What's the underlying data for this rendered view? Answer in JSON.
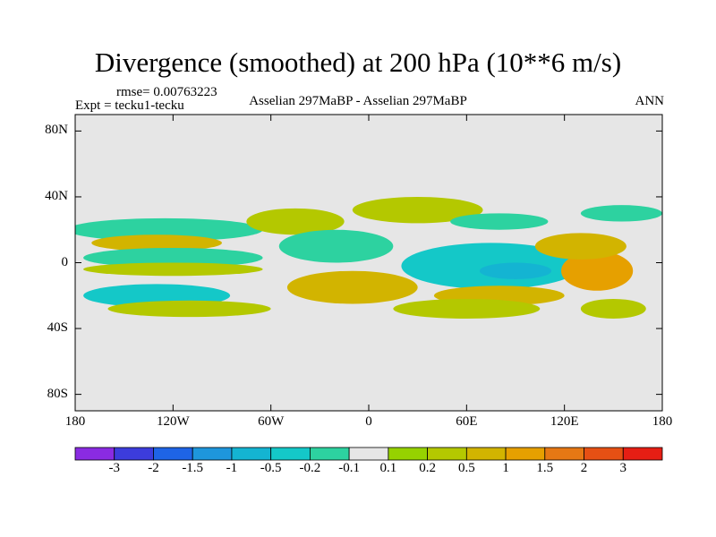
{
  "figure": {
    "title": "Divergence (smoothed) at 200 hPa (10**6 m/s)",
    "rmse": "rmse= 0.00763223",
    "left_label": "Expt = tecku1-tecku",
    "center_label": "Asselian 297MaBP - Asselian 297MaBP",
    "right_label": "ANN"
  },
  "chart_data": {
    "type": "heatmap",
    "title": "Divergence (smoothed) at 200 hPa (10**6 m/s)",
    "xlabel": "",
    "ylabel": "",
    "xlim": [
      -180,
      180
    ],
    "ylim": [
      -90,
      90
    ],
    "x_ticks": [
      {
        "value": -180,
        "label": "180"
      },
      {
        "value": -120,
        "label": "120W"
      },
      {
        "value": -60,
        "label": "60W"
      },
      {
        "value": 0,
        "label": "0"
      },
      {
        "value": 60,
        "label": "60E"
      },
      {
        "value": 120,
        "label": "120E"
      },
      {
        "value": 180,
        "label": "180"
      }
    ],
    "y_ticks": [
      {
        "value": 80,
        "label": "80N"
      },
      {
        "value": 40,
        "label": "40N"
      },
      {
        "value": 0,
        "label": "0"
      },
      {
        "value": -40,
        "label": "40S"
      },
      {
        "value": -80,
        "label": "80S"
      }
    ],
    "background_color": "#e6e6e6",
    "colorbar": {
      "colors": [
        "#8a2be2",
        "#3c3cdc",
        "#1e64e6",
        "#1e96dc",
        "#14b4d2",
        "#14c8c8",
        "#2dd2a0",
        "#e6e6e6",
        "#96d200",
        "#b4c800",
        "#d2b400",
        "#e6a000",
        "#e67814",
        "#e65014",
        "#e61e14"
      ],
      "labels": [
        "-3",
        "-2",
        "-1.5",
        "-1",
        "-0.5",
        "-0.2",
        "-0.1",
        "0.1",
        "0.2",
        "0.5",
        "1",
        "1.5",
        "2",
        "3"
      ]
    },
    "features": [
      {
        "name": "npac-cyan-band",
        "lon": -125,
        "lat": 20,
        "rx": 60,
        "ry": 7,
        "level": -0.2
      },
      {
        "name": "npac-yellow-band",
        "lon": -130,
        "lat": 12,
        "rx": 40,
        "ry": 5,
        "level": 0.5
      },
      {
        "name": "npac-cyan-band-2",
        "lon": -120,
        "lat": 3,
        "rx": 55,
        "ry": 6,
        "level": -0.2
      },
      {
        "name": "equator-green-band",
        "lon": -120,
        "lat": -4,
        "rx": 55,
        "ry": 4,
        "level": 0.2
      },
      {
        "name": "spac-blue-band",
        "lon": -130,
        "lat": -20,
        "rx": 45,
        "ry": 7,
        "level": -0.5
      },
      {
        "name": "spac-green-band",
        "lon": -110,
        "lat": -28,
        "rx": 50,
        "ry": 5,
        "level": 0.2
      },
      {
        "name": "central-green",
        "lon": -45,
        "lat": 25,
        "rx": 30,
        "ry": 8,
        "level": 0.2
      },
      {
        "name": "atlantic-cyan",
        "lon": -20,
        "lat": 10,
        "rx": 35,
        "ry": 10,
        "level": -0.2
      },
      {
        "name": "atlantic-yellow",
        "lon": -10,
        "lat": -15,
        "rx": 40,
        "ry": 10,
        "level": 0.5
      },
      {
        "name": "africa-cyan-core",
        "lon": 75,
        "lat": -2,
        "rx": 55,
        "ry": 14,
        "level": -0.5
      },
      {
        "name": "africa-blue-core",
        "lon": 90,
        "lat": -5,
        "rx": 22,
        "ry": 5,
        "level": -1
      },
      {
        "name": "indian-yellow",
        "lon": 80,
        "lat": -20,
        "rx": 40,
        "ry": 6,
        "level": 0.5
      },
      {
        "name": "indian-green",
        "lon": 60,
        "lat": -28,
        "rx": 45,
        "ry": 6,
        "level": 0.2
      },
      {
        "name": "east-orange",
        "lon": 140,
        "lat": -5,
        "rx": 22,
        "ry": 12,
        "level": 1
      },
      {
        "name": "east-yellow-north",
        "lon": 130,
        "lat": 10,
        "rx": 28,
        "ry": 8,
        "level": 0.5
      },
      {
        "name": "east-green-south",
        "lon": 150,
        "lat": -28,
        "rx": 20,
        "ry": 6,
        "level": 0.2
      },
      {
        "name": "northern-green",
        "lon": 30,
        "lat": 32,
        "rx": 40,
        "ry": 8,
        "level": 0.2
      },
      {
        "name": "northern-cyan",
        "lon": 80,
        "lat": 25,
        "rx": 30,
        "ry": 5,
        "level": -0.2
      },
      {
        "name": "far-east-cyan",
        "lon": 155,
        "lat": 30,
        "rx": 25,
        "ry": 5,
        "level": -0.2
      }
    ]
  }
}
